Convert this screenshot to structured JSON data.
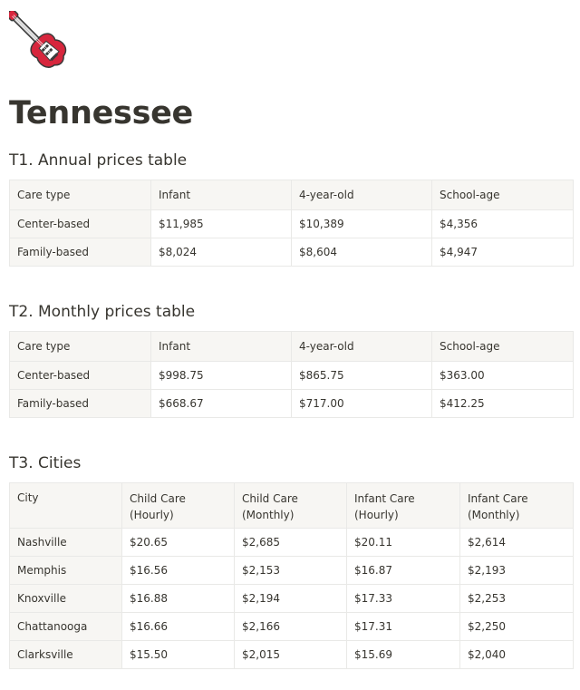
{
  "page": {
    "icon": "electric-guitar-icon",
    "title": "Tennessee"
  },
  "colors": {
    "guitar_body": "#d7263d",
    "header_bg": "#f7f6f3",
    "border": "#e9e9e7",
    "text": "#37352f"
  },
  "t1": {
    "title": "T1. Annual prices table",
    "headers": [
      "Care type",
      "Infant",
      "4-year-old",
      "School-age"
    ],
    "rows": [
      [
        "Center-based",
        "$11,985",
        "$10,389",
        "$4,356"
      ],
      [
        "Family-based",
        "$8,024",
        "$8,604",
        "$4,947"
      ]
    ]
  },
  "t2": {
    "title": "T2. Monthly prices table",
    "headers": [
      "Care type",
      "Infant",
      "4-year-old",
      "School-age"
    ],
    "rows": [
      [
        "Center-based",
        "$998.75",
        "$865.75",
        "$363.00"
      ],
      [
        "Family-based",
        "$668.67",
        "$717.00",
        "$412.25"
      ]
    ]
  },
  "t3": {
    "title": "T3. Cities",
    "headers": [
      [
        "City",
        ""
      ],
      [
        "Child Care",
        "(Hourly)"
      ],
      [
        "Child Care",
        "(Monthly)"
      ],
      [
        "Infant Care",
        "(Hourly)"
      ],
      [
        "Infant Care",
        "(Monthly)"
      ]
    ],
    "rows": [
      [
        "Nashville",
        "$20.65",
        "$2,685",
        "$20.11",
        "$2,614"
      ],
      [
        "Memphis",
        "$16.56",
        "$2,153",
        "$16.87",
        "$2,193"
      ],
      [
        "Knoxville",
        "$16.88",
        "$2,194",
        "$17.33",
        "$2,253"
      ],
      [
        "Chattanooga",
        "$16.66",
        "$2,166",
        "$17.31",
        "$2,250"
      ],
      [
        "Clarksville",
        "$15.50",
        "$2,015",
        "$15.69",
        "$2,040"
      ]
    ]
  }
}
